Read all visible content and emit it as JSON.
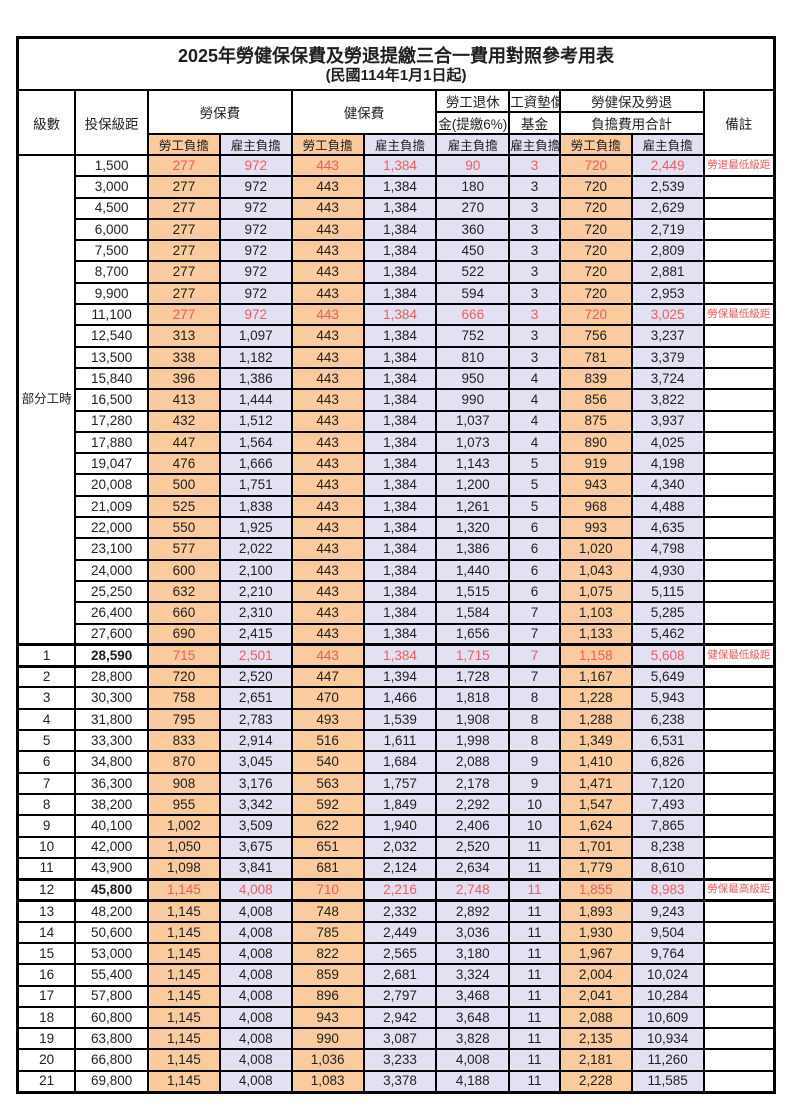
{
  "title": "2025年勞健保保費及勞退提繳三合一費用對照參考用表",
  "subtitle": "(民國114年1月1日起)",
  "header": {
    "level": "級數",
    "bracket": "投保級距",
    "labor_insurance": "勞保費",
    "health_insurance": "健保費",
    "pension_line1": "勞工退休",
    "pension_line2": "金(提繳6%)",
    "wage_fund_line1": "工資墊償",
    "wage_fund_line2": "基金",
    "total_line1": "勞健保及勞退",
    "total_line2": "負擔費用合計",
    "employee_share": "勞工負擔",
    "employer_share": "雇主負擔",
    "remark": "備註"
  },
  "part_time_label": "部分工時",
  "colors": {
    "employee_fill": "#F9CB9D",
    "employer_fill": "#E2E1F3",
    "highlight_red": "#F25B5B"
  },
  "rows": [
    {
      "level": "",
      "bracket": "1,500",
      "li_emp": "277",
      "li_er": "972",
      "hi_emp": "443",
      "hi_er": "1,384",
      "pension": "90",
      "fund": "3",
      "tot_emp": "720",
      "tot_er": "2,449",
      "note": "勞退最低級距",
      "red": true,
      "bold": false,
      "thick": false
    },
    {
      "level": "",
      "bracket": "3,000",
      "li_emp": "277",
      "li_er": "972",
      "hi_emp": "443",
      "hi_er": "1,384",
      "pension": "180",
      "fund": "3",
      "tot_emp": "720",
      "tot_er": "2,539",
      "note": "",
      "red": false,
      "bold": false,
      "thick": false
    },
    {
      "level": "",
      "bracket": "4,500",
      "li_emp": "277",
      "li_er": "972",
      "hi_emp": "443",
      "hi_er": "1,384",
      "pension": "270",
      "fund": "3",
      "tot_emp": "720",
      "tot_er": "2,629",
      "note": "",
      "red": false,
      "bold": false,
      "thick": false
    },
    {
      "level": "",
      "bracket": "6,000",
      "li_emp": "277",
      "li_er": "972",
      "hi_emp": "443",
      "hi_er": "1,384",
      "pension": "360",
      "fund": "3",
      "tot_emp": "720",
      "tot_er": "2,719",
      "note": "",
      "red": false,
      "bold": false,
      "thick": false
    },
    {
      "level": "",
      "bracket": "7,500",
      "li_emp": "277",
      "li_er": "972",
      "hi_emp": "443",
      "hi_er": "1,384",
      "pension": "450",
      "fund": "3",
      "tot_emp": "720",
      "tot_er": "2,809",
      "note": "",
      "red": false,
      "bold": false,
      "thick": false
    },
    {
      "level": "",
      "bracket": "8,700",
      "li_emp": "277",
      "li_er": "972",
      "hi_emp": "443",
      "hi_er": "1,384",
      "pension": "522",
      "fund": "3",
      "tot_emp": "720",
      "tot_er": "2,881",
      "note": "",
      "red": false,
      "bold": false,
      "thick": false
    },
    {
      "level": "",
      "bracket": "9,900",
      "li_emp": "277",
      "li_er": "972",
      "hi_emp": "443",
      "hi_er": "1,384",
      "pension": "594",
      "fund": "3",
      "tot_emp": "720",
      "tot_er": "2,953",
      "note": "",
      "red": false,
      "bold": false,
      "thick": false
    },
    {
      "level": "",
      "bracket": "11,100",
      "li_emp": "277",
      "li_er": "972",
      "hi_emp": "443",
      "hi_er": "1,384",
      "pension": "666",
      "fund": "3",
      "tot_emp": "720",
      "tot_er": "3,025",
      "note": "勞保最低級距",
      "red": true,
      "bold": false,
      "thick": false
    },
    {
      "level": "",
      "bracket": "12,540",
      "li_emp": "313",
      "li_er": "1,097",
      "hi_emp": "443",
      "hi_er": "1,384",
      "pension": "752",
      "fund": "3",
      "tot_emp": "756",
      "tot_er": "3,237",
      "note": "",
      "red": false,
      "bold": false,
      "thick": false
    },
    {
      "level": "",
      "bracket": "13,500",
      "li_emp": "338",
      "li_er": "1,182",
      "hi_emp": "443",
      "hi_er": "1,384",
      "pension": "810",
      "fund": "3",
      "tot_emp": "781",
      "tot_er": "3,379",
      "note": "",
      "red": false,
      "bold": false,
      "thick": false
    },
    {
      "level": "",
      "bracket": "15,840",
      "li_emp": "396",
      "li_er": "1,386",
      "hi_emp": "443",
      "hi_er": "1,384",
      "pension": "950",
      "fund": "4",
      "tot_emp": "839",
      "tot_er": "3,724",
      "note": "",
      "red": false,
      "bold": false,
      "thick": false
    },
    {
      "level": "",
      "bracket": "16,500",
      "li_emp": "413",
      "li_er": "1,444",
      "hi_emp": "443",
      "hi_er": "1,384",
      "pension": "990",
      "fund": "4",
      "tot_emp": "856",
      "tot_er": "3,822",
      "note": "",
      "red": false,
      "bold": false,
      "thick": false
    },
    {
      "level": "",
      "bracket": "17,280",
      "li_emp": "432",
      "li_er": "1,512",
      "hi_emp": "443",
      "hi_er": "1,384",
      "pension": "1,037",
      "fund": "4",
      "tot_emp": "875",
      "tot_er": "3,937",
      "note": "",
      "red": false,
      "bold": false,
      "thick": false
    },
    {
      "level": "",
      "bracket": "17,880",
      "li_emp": "447",
      "li_er": "1,564",
      "hi_emp": "443",
      "hi_er": "1,384",
      "pension": "1,073",
      "fund": "4",
      "tot_emp": "890",
      "tot_er": "4,025",
      "note": "",
      "red": false,
      "bold": false,
      "thick": false
    },
    {
      "level": "",
      "bracket": "19,047",
      "li_emp": "476",
      "li_er": "1,666",
      "hi_emp": "443",
      "hi_er": "1,384",
      "pension": "1,143",
      "fund": "5",
      "tot_emp": "919",
      "tot_er": "4,198",
      "note": "",
      "red": false,
      "bold": false,
      "thick": false
    },
    {
      "level": "",
      "bracket": "20,008",
      "li_emp": "500",
      "li_er": "1,751",
      "hi_emp": "443",
      "hi_er": "1,384",
      "pension": "1,200",
      "fund": "5",
      "tot_emp": "943",
      "tot_er": "4,340",
      "note": "",
      "red": false,
      "bold": false,
      "thick": false
    },
    {
      "level": "",
      "bracket": "21,009",
      "li_emp": "525",
      "li_er": "1,838",
      "hi_emp": "443",
      "hi_er": "1,384",
      "pension": "1,261",
      "fund": "5",
      "tot_emp": "968",
      "tot_er": "4,488",
      "note": "",
      "red": false,
      "bold": false,
      "thick": false
    },
    {
      "level": "",
      "bracket": "22,000",
      "li_emp": "550",
      "li_er": "1,925",
      "hi_emp": "443",
      "hi_er": "1,384",
      "pension": "1,320",
      "fund": "6",
      "tot_emp": "993",
      "tot_er": "4,635",
      "note": "",
      "red": false,
      "bold": false,
      "thick": false
    },
    {
      "level": "",
      "bracket": "23,100",
      "li_emp": "577",
      "li_er": "2,022",
      "hi_emp": "443",
      "hi_er": "1,384",
      "pension": "1,386",
      "fund": "6",
      "tot_emp": "1,020",
      "tot_er": "4,798",
      "note": "",
      "red": false,
      "bold": false,
      "thick": false
    },
    {
      "level": "",
      "bracket": "24,000",
      "li_emp": "600",
      "li_er": "2,100",
      "hi_emp": "443",
      "hi_er": "1,384",
      "pension": "1,440",
      "fund": "6",
      "tot_emp": "1,043",
      "tot_er": "4,930",
      "note": "",
      "red": false,
      "bold": false,
      "thick": false
    },
    {
      "level": "",
      "bracket": "25,250",
      "li_emp": "632",
      "li_er": "2,210",
      "hi_emp": "443",
      "hi_er": "1,384",
      "pension": "1,515",
      "fund": "6",
      "tot_emp": "1,075",
      "tot_er": "5,115",
      "note": "",
      "red": false,
      "bold": false,
      "thick": false
    },
    {
      "level": "",
      "bracket": "26,400",
      "li_emp": "660",
      "li_er": "2,310",
      "hi_emp": "443",
      "hi_er": "1,384",
      "pension": "1,584",
      "fund": "7",
      "tot_emp": "1,103",
      "tot_er": "5,285",
      "note": "",
      "red": false,
      "bold": false,
      "thick": false
    },
    {
      "level": "",
      "bracket": "27,600",
      "li_emp": "690",
      "li_er": "2,415",
      "hi_emp": "443",
      "hi_er": "1,384",
      "pension": "1,656",
      "fund": "7",
      "tot_emp": "1,133",
      "tot_er": "5,462",
      "note": "",
      "red": false,
      "bold": false,
      "thick": false
    },
    {
      "level": "1",
      "bracket": "28,590",
      "li_emp": "715",
      "li_er": "2,501",
      "hi_emp": "443",
      "hi_er": "1,384",
      "pension": "1,715",
      "fund": "7",
      "tot_emp": "1,158",
      "tot_er": "5,608",
      "note": "健保最低級距",
      "red": true,
      "bold": true,
      "thick": true
    },
    {
      "level": "2",
      "bracket": "28,800",
      "li_emp": "720",
      "li_er": "2,520",
      "hi_emp": "447",
      "hi_er": "1,394",
      "pension": "1,728",
      "fund": "7",
      "tot_emp": "1,167",
      "tot_er": "5,649",
      "note": "",
      "red": false,
      "bold": false,
      "thick": false
    },
    {
      "level": "3",
      "bracket": "30,300",
      "li_emp": "758",
      "li_er": "2,651",
      "hi_emp": "470",
      "hi_er": "1,466",
      "pension": "1,818",
      "fund": "8",
      "tot_emp": "1,228",
      "tot_er": "5,943",
      "note": "",
      "red": false,
      "bold": false,
      "thick": false
    },
    {
      "level": "4",
      "bracket": "31,800",
      "li_emp": "795",
      "li_er": "2,783",
      "hi_emp": "493",
      "hi_er": "1,539",
      "pension": "1,908",
      "fund": "8",
      "tot_emp": "1,288",
      "tot_er": "6,238",
      "note": "",
      "red": false,
      "bold": false,
      "thick": false
    },
    {
      "level": "5",
      "bracket": "33,300",
      "li_emp": "833",
      "li_er": "2,914",
      "hi_emp": "516",
      "hi_er": "1,611",
      "pension": "1,998",
      "fund": "8",
      "tot_emp": "1,349",
      "tot_er": "6,531",
      "note": "",
      "red": false,
      "bold": false,
      "thick": false
    },
    {
      "level": "6",
      "bracket": "34,800",
      "li_emp": "870",
      "li_er": "3,045",
      "hi_emp": "540",
      "hi_er": "1,684",
      "pension": "2,088",
      "fund": "9",
      "tot_emp": "1,410",
      "tot_er": "6,826",
      "note": "",
      "red": false,
      "bold": false,
      "thick": false
    },
    {
      "level": "7",
      "bracket": "36,300",
      "li_emp": "908",
      "li_er": "3,176",
      "hi_emp": "563",
      "hi_er": "1,757",
      "pension": "2,178",
      "fund": "9",
      "tot_emp": "1,471",
      "tot_er": "7,120",
      "note": "",
      "red": false,
      "bold": false,
      "thick": false
    },
    {
      "level": "8",
      "bracket": "38,200",
      "li_emp": "955",
      "li_er": "3,342",
      "hi_emp": "592",
      "hi_er": "1,849",
      "pension": "2,292",
      "fund": "10",
      "tot_emp": "1,547",
      "tot_er": "7,493",
      "note": "",
      "red": false,
      "bold": false,
      "thick": false
    },
    {
      "level": "9",
      "bracket": "40,100",
      "li_emp": "1,002",
      "li_er": "3,509",
      "hi_emp": "622",
      "hi_er": "1,940",
      "pension": "2,406",
      "fund": "10",
      "tot_emp": "1,624",
      "tot_er": "7,865",
      "note": "",
      "red": false,
      "bold": false,
      "thick": false
    },
    {
      "level": "10",
      "bracket": "42,000",
      "li_emp": "1,050",
      "li_er": "3,675",
      "hi_emp": "651",
      "hi_er": "2,032",
      "pension": "2,520",
      "fund": "11",
      "tot_emp": "1,701",
      "tot_er": "8,238",
      "note": "",
      "red": false,
      "bold": false,
      "thick": false
    },
    {
      "level": "11",
      "bracket": "43,900",
      "li_emp": "1,098",
      "li_er": "3,841",
      "hi_emp": "681",
      "hi_er": "2,124",
      "pension": "2,634",
      "fund": "11",
      "tot_emp": "1,779",
      "tot_er": "8,610",
      "note": "",
      "red": false,
      "bold": false,
      "thick": false
    },
    {
      "level": "12",
      "bracket": "45,800",
      "li_emp": "1,145",
      "li_er": "4,008",
      "hi_emp": "710",
      "hi_er": "2,216",
      "pension": "2,748",
      "fund": "11",
      "tot_emp": "1,855",
      "tot_er": "8,983",
      "note": "勞保最高級距",
      "red": true,
      "bold": true,
      "thick": true
    },
    {
      "level": "13",
      "bracket": "48,200",
      "li_emp": "1,145",
      "li_er": "4,008",
      "hi_emp": "748",
      "hi_er": "2,332",
      "pension": "2,892",
      "fund": "11",
      "tot_emp": "1,893",
      "tot_er": "9,243",
      "note": "",
      "red": false,
      "bold": false,
      "thick": false
    },
    {
      "level": "14",
      "bracket": "50,600",
      "li_emp": "1,145",
      "li_er": "4,008",
      "hi_emp": "785",
      "hi_er": "2,449",
      "pension": "3,036",
      "fund": "11",
      "tot_emp": "1,930",
      "tot_er": "9,504",
      "note": "",
      "red": false,
      "bold": false,
      "thick": false
    },
    {
      "level": "15",
      "bracket": "53,000",
      "li_emp": "1,145",
      "li_er": "4,008",
      "hi_emp": "822",
      "hi_er": "2,565",
      "pension": "3,180",
      "fund": "11",
      "tot_emp": "1,967",
      "tot_er": "9,764",
      "note": "",
      "red": false,
      "bold": false,
      "thick": false
    },
    {
      "level": "16",
      "bracket": "55,400",
      "li_emp": "1,145",
      "li_er": "4,008",
      "hi_emp": "859",
      "hi_er": "2,681",
      "pension": "3,324",
      "fund": "11",
      "tot_emp": "2,004",
      "tot_er": "10,024",
      "note": "",
      "red": false,
      "bold": false,
      "thick": false
    },
    {
      "level": "17",
      "bracket": "57,800",
      "li_emp": "1,145",
      "li_er": "4,008",
      "hi_emp": "896",
      "hi_er": "2,797",
      "pension": "3,468",
      "fund": "11",
      "tot_emp": "2,041",
      "tot_er": "10,284",
      "note": "",
      "red": false,
      "bold": false,
      "thick": false
    },
    {
      "level": "18",
      "bracket": "60,800",
      "li_emp": "1,145",
      "li_er": "4,008",
      "hi_emp": "943",
      "hi_er": "2,942",
      "pension": "3,648",
      "fund": "11",
      "tot_emp": "2,088",
      "tot_er": "10,609",
      "note": "",
      "red": false,
      "bold": false,
      "thick": false
    },
    {
      "level": "19",
      "bracket": "63,800",
      "li_emp": "1,145",
      "li_er": "4,008",
      "hi_emp": "990",
      "hi_er": "3,087",
      "pension": "3,828",
      "fund": "11",
      "tot_emp": "2,135",
      "tot_er": "10,934",
      "note": "",
      "red": false,
      "bold": false,
      "thick": false
    },
    {
      "level": "20",
      "bracket": "66,800",
      "li_emp": "1,145",
      "li_er": "4,008",
      "hi_emp": "1,036",
      "hi_er": "3,233",
      "pension": "4,008",
      "fund": "11",
      "tot_emp": "2,181",
      "tot_er": "11,260",
      "note": "",
      "red": false,
      "bold": false,
      "thick": false
    },
    {
      "level": "21",
      "bracket": "69,800",
      "li_emp": "1,145",
      "li_er": "4,008",
      "hi_emp": "1,083",
      "hi_er": "3,378",
      "pension": "4,188",
      "fund": "11",
      "tot_emp": "2,228",
      "tot_er": "11,585",
      "note": "",
      "red": false,
      "bold": false,
      "thick": false
    }
  ]
}
